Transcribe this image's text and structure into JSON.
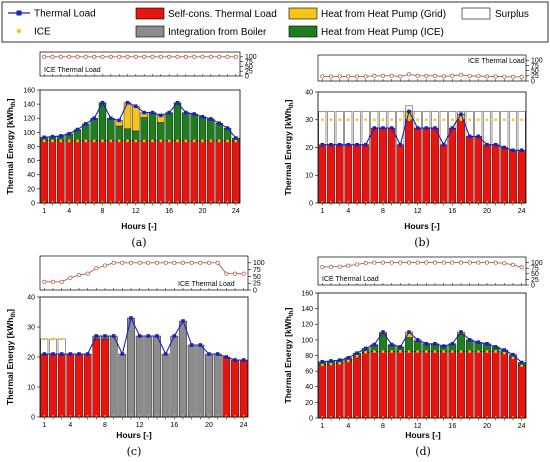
{
  "colors": {
    "self_cons": "#e8140f",
    "boiler": "#8c8c8c",
    "hp_grid": "#f5c518",
    "hp_ice": "#1e7d1e",
    "surplus": "#ffffff",
    "thermal_load": "#1c22b8",
    "ice_marker": "#f5c518",
    "ice_line": "#b05a4a"
  },
  "legend": {
    "items": [
      {
        "key": "thermal_load",
        "label": "Thermal Load"
      },
      {
        "key": "self_cons",
        "label": "Self-cons. Thermal Load"
      },
      {
        "key": "hp_grid",
        "label": "Heat from Heat Pump (Grid)"
      },
      {
        "key": "surplus",
        "label": "Surplus"
      },
      {
        "key": "ice",
        "label": "ICE"
      },
      {
        "key": "boiler",
        "label": "Integration from Boiler"
      },
      {
        "key": "hp_ice",
        "label": "Heat from Heat Pump (ICE)"
      }
    ]
  },
  "chart_data": [
    {
      "panel": "(a)",
      "type": "bar",
      "ice_label": "ICE Thermal Load",
      "xlabel": "Hours [-]",
      "ylabel": "Thermal Energy [kWh",
      "ylabel_sub": "th",
      "ylabel_tail": "]",
      "ylim": [
        0,
        160
      ],
      "yticks": [
        0,
        20,
        40,
        60,
        80,
        100,
        120,
        140,
        160
      ],
      "ice_ylim": [
        0,
        125
      ],
      "ice_yticks": [
        0,
        25,
        50,
        75,
        100
      ],
      "xticks": [
        1,
        4,
        8,
        12,
        16,
        20,
        24
      ],
      "categories": [
        1,
        2,
        3,
        4,
        5,
        6,
        7,
        8,
        9,
        10,
        11,
        12,
        13,
        14,
        15,
        16,
        17,
        18,
        19,
        20,
        21,
        22,
        23,
        24
      ],
      "thermal_load": [
        93,
        94,
        95,
        98,
        104,
        112,
        120,
        142,
        120,
        117,
        142,
        137,
        128,
        128,
        124,
        128,
        142,
        128,
        126,
        122,
        119,
        113,
        106,
        92
      ],
      "self_cons": [
        88,
        88,
        88,
        88,
        88,
        88,
        88,
        88,
        88,
        88,
        88,
        88,
        88,
        88,
        88,
        88,
        88,
        88,
        88,
        88,
        88,
        88,
        88,
        88
      ],
      "hp_ice": [
        5,
        6,
        7,
        10,
        16,
        24,
        32,
        54,
        32,
        21,
        17,
        14,
        33,
        40,
        26,
        40,
        54,
        40,
        38,
        34,
        31,
        25,
        18,
        4
      ],
      "hp_grid": [
        0,
        0,
        0,
        0,
        0,
        0,
        0,
        0,
        0,
        8,
        37,
        35,
        7,
        0,
        10,
        0,
        0,
        0,
        0,
        0,
        0,
        0,
        0,
        0
      ],
      "boiler": [
        0,
        0,
        0,
        0,
        0,
        0,
        0,
        0,
        0,
        0,
        0,
        0,
        0,
        0,
        0,
        0,
        0,
        0,
        0,
        0,
        0,
        0,
        0,
        0
      ],
      "surplus": [
        0,
        0,
        0,
        0,
        0,
        0,
        0,
        0,
        0,
        0,
        0,
        0,
        0,
        0,
        0,
        0,
        0,
        0,
        0,
        0,
        0,
        0,
        0,
        0
      ],
      "ice": [
        88,
        88,
        88,
        88,
        88,
        88,
        88,
        88,
        88,
        88,
        88,
        88,
        88,
        88,
        88,
        88,
        88,
        88,
        88,
        88,
        88,
        88,
        88,
        88
      ],
      "ice_load_pct": [
        100,
        100,
        100,
        100,
        100,
        100,
        100,
        100,
        100,
        100,
        100,
        100,
        100,
        100,
        100,
        100,
        100,
        100,
        100,
        100,
        100,
        100,
        100,
        100
      ]
    },
    {
      "panel": "(b)",
      "type": "bar",
      "ice_label": "ICE Thermal Load",
      "xlabel": "Hours [-]",
      "ylabel": "Thermal Energy [kWh",
      "ylabel_sub": "th",
      "ylabel_tail": "]",
      "ylim": [
        0,
        40
      ],
      "yticks": [
        0,
        10,
        20,
        30,
        40
      ],
      "ice_ylim": [
        0,
        125
      ],
      "ice_yticks": [
        0,
        25,
        50,
        75,
        100
      ],
      "xticks": [
        1,
        4,
        8,
        12,
        16,
        20,
        24
      ],
      "categories": [
        1,
        2,
        3,
        4,
        5,
        6,
        7,
        8,
        9,
        10,
        11,
        12,
        13,
        14,
        15,
        16,
        17,
        18,
        19,
        20,
        21,
        22,
        23,
        24
      ],
      "thermal_load": [
        21,
        21,
        21,
        21,
        21,
        21,
        27,
        27,
        27,
        21,
        33,
        27,
        27,
        27,
        21,
        27,
        32,
        24,
        24,
        21,
        21,
        20,
        19,
        19
      ],
      "self_cons": [
        21,
        21,
        21,
        21,
        21,
        21,
        27,
        27,
        27,
        21,
        30,
        27,
        27,
        27,
        21,
        27,
        30,
        24,
        24,
        21,
        21,
        20,
        19,
        19
      ],
      "hp_ice": [
        0,
        0,
        0,
        0,
        0,
        0,
        0,
        0,
        0,
        0,
        0,
        0,
        0,
        0,
        0,
        0,
        0,
        0,
        0,
        0,
        0,
        0,
        0,
        0
      ],
      "hp_grid": [
        0,
        0,
        0,
        0,
        0,
        0,
        0,
        0,
        0,
        0,
        3,
        0,
        0,
        0,
        0,
        0,
        2,
        0,
        0,
        0,
        0,
        0,
        0,
        0
      ],
      "boiler": [
        0,
        0,
        0,
        0,
        0,
        0,
        0,
        0,
        0,
        0,
        0,
        0,
        0,
        0,
        0,
        0,
        0,
        0,
        0,
        0,
        0,
        0,
        0,
        0
      ],
      "surplus": [
        12,
        12,
        12,
        12,
        12,
        12,
        6,
        6,
        6,
        12,
        2,
        6,
        6,
        6,
        12,
        6,
        1,
        9,
        9,
        12,
        12,
        13,
        14,
        14
      ],
      "ice": [
        30,
        30,
        30,
        30,
        30,
        30,
        30,
        30,
        30,
        30,
        30,
        30,
        30,
        30,
        30,
        30,
        30,
        30,
        30,
        30,
        30,
        30,
        30,
        30
      ],
      "ice_load_pct": [
        22,
        22,
        22,
        22,
        22,
        22,
        25,
        25,
        25,
        22,
        32,
        25,
        25,
        25,
        22,
        25,
        30,
        24,
        24,
        22,
        22,
        21,
        20,
        20
      ]
    },
    {
      "panel": "(c)",
      "type": "bar",
      "ice_label": "ICE Thermal Load",
      "xlabel": "Hours [-]",
      "ylabel": "Thermal Energy [kWh",
      "ylabel_sub": "th",
      "ylabel_tail": "]",
      "ylim": [
        0,
        40
      ],
      "yticks": [
        0,
        10,
        20,
        30,
        40
      ],
      "ice_ylim": [
        0,
        125
      ],
      "ice_yticks": [
        0,
        25,
        50,
        75,
        100
      ],
      "xticks": [
        1,
        4,
        8,
        12,
        16,
        20,
        24
      ],
      "categories": [
        1,
        2,
        3,
        4,
        5,
        6,
        7,
        8,
        9,
        10,
        11,
        12,
        13,
        14,
        15,
        16,
        17,
        18,
        19,
        20,
        21,
        22,
        23,
        24
      ],
      "thermal_load": [
        21,
        21,
        21,
        21,
        21,
        21,
        27,
        27,
        27,
        21,
        33,
        27,
        27,
        27,
        21,
        27,
        32,
        24,
        24,
        21,
        21,
        20,
        19,
        19
      ],
      "self_cons": [
        21,
        21,
        21,
        21,
        21,
        21,
        26,
        26,
        0,
        0,
        0,
        0,
        0,
        0,
        0,
        0,
        0,
        0,
        0,
        0,
        0,
        20,
        19,
        19
      ],
      "hp_ice": [
        0,
        0,
        0,
        0,
        0,
        0,
        0,
        0,
        0,
        0,
        0,
        0,
        0,
        0,
        0,
        0,
        0,
        0,
        0,
        0,
        0,
        0,
        0,
        0
      ],
      "hp_grid": [
        0,
        0,
        0,
        0,
        0,
        0,
        0,
        0,
        0,
        0,
        0,
        0,
        0,
        0,
        0,
        0,
        0,
        0,
        0,
        0,
        0,
        0,
        0,
        0
      ],
      "boiler": [
        0,
        0,
        0,
        0,
        0,
        0,
        1,
        1,
        27,
        21,
        33,
        27,
        27,
        27,
        21,
        27,
        32,
        24,
        24,
        21,
        21,
        0,
        0,
        0
      ],
      "surplus": [
        5,
        5,
        5,
        0,
        0,
        0,
        0,
        0,
        0,
        0,
        0,
        0,
        0,
        0,
        0,
        0,
        0,
        0,
        0,
        0,
        0,
        0,
        0,
        0
      ],
      "ice": [
        26,
        26,
        26,
        0,
        0,
        0,
        0,
        0,
        0,
        0,
        0,
        0,
        0,
        0,
        0,
        0,
        0,
        0,
        0,
        0,
        0,
        0,
        0,
        0
      ],
      "ice_load_pct": [
        30,
        30,
        30,
        45,
        55,
        60,
        80,
        90,
        100,
        100,
        100,
        100,
        100,
        100,
        100,
        100,
        100,
        100,
        100,
        100,
        100,
        60,
        60,
        60
      ]
    },
    {
      "panel": "(d)",
      "type": "bar",
      "ice_label": "ICE Thermal Load",
      "xlabel": "Hours [-]",
      "ylabel": "Thermal Energy [kWh",
      "ylabel_sub": "th",
      "ylabel_tail": "]",
      "ylim": [
        0,
        160
      ],
      "yticks": [
        0,
        20,
        40,
        60,
        80,
        100,
        120,
        140,
        160
      ],
      "ice_ylim": [
        0,
        125
      ],
      "ice_yticks": [
        0,
        25,
        50,
        75,
        100
      ],
      "xticks": [
        1,
        4,
        8,
        12,
        16,
        20,
        24
      ],
      "categories": [
        1,
        2,
        3,
        4,
        5,
        6,
        7,
        8,
        9,
        10,
        11,
        12,
        13,
        14,
        15,
        16,
        17,
        18,
        19,
        20,
        21,
        22,
        23,
        24
      ],
      "thermal_load": [
        72,
        73,
        74,
        77,
        83,
        89,
        94,
        110,
        94,
        91,
        110,
        100,
        95,
        95,
        92,
        95,
        110,
        100,
        97,
        95,
        91,
        87,
        81,
        71
      ],
      "self_cons": [
        68,
        69,
        70,
        73,
        79,
        84,
        85,
        85,
        85,
        85,
        85,
        85,
        85,
        85,
        85,
        85,
        85,
        85,
        85,
        85,
        85,
        83,
        77,
        67
      ],
      "hp_ice": [
        4,
        4,
        4,
        4,
        4,
        5,
        8,
        23,
        8,
        6,
        18,
        13,
        10,
        10,
        7,
        10,
        22,
        15,
        12,
        10,
        6,
        4,
        4,
        4
      ],
      "hp_grid": [
        0,
        0,
        0,
        0,
        0,
        0,
        1,
        2,
        1,
        0,
        7,
        2,
        0,
        0,
        0,
        0,
        3,
        0,
        0,
        0,
        0,
        0,
        0,
        0
      ],
      "boiler": [
        0,
        0,
        0,
        0,
        0,
        0,
        0,
        0,
        0,
        0,
        0,
        0,
        0,
        0,
        0,
        0,
        0,
        0,
        0,
        0,
        0,
        0,
        0,
        0
      ],
      "surplus": [
        0,
        0,
        0,
        0,
        0,
        0,
        0,
        0,
        0,
        0,
        0,
        0,
        0,
        0,
        0,
        0,
        0,
        0,
        0,
        0,
        0,
        0,
        0,
        0
      ],
      "ice": [
        68,
        69,
        70,
        73,
        79,
        84,
        85,
        85,
        85,
        85,
        85,
        85,
        85,
        85,
        85,
        85,
        85,
        85,
        85,
        85,
        85,
        83,
        77,
        67
      ],
      "ice_load_pct": [
        80,
        81,
        82,
        86,
        92,
        98,
        100,
        100,
        100,
        100,
        100,
        100,
        100,
        100,
        100,
        100,
        100,
        100,
        100,
        100,
        100,
        97,
        90,
        79
      ]
    }
  ]
}
